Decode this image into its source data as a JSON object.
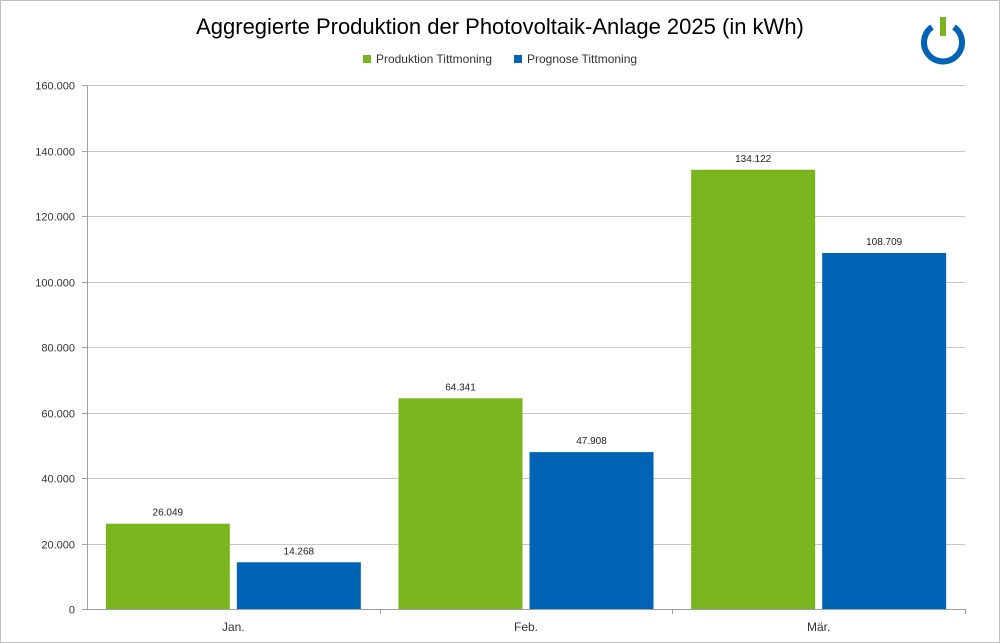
{
  "chart_data": {
    "type": "bar",
    "title": "Aggregierte Produktion der Photovoltaik-Anlage 2025 (in kWh)",
    "categories": [
      "Jan.",
      "Feb.",
      "Mär."
    ],
    "series": [
      {
        "name": "Produktion Tittmoning",
        "color": "#7ab51d",
        "values": [
          26049,
          64341,
          134122
        ],
        "labels": [
          "26.049",
          "64.341",
          "134.122"
        ]
      },
      {
        "name": "Prognose Tittmoning",
        "color": "#0064b4",
        "values": [
          14268,
          47908,
          108709
        ],
        "labels": [
          "14.268",
          "47.908",
          "108.709"
        ]
      }
    ],
    "ylim": [
      0,
      160000
    ],
    "yticks": [
      0,
      20000,
      40000,
      60000,
      80000,
      100000,
      120000,
      140000,
      160000
    ],
    "ytick_labels": [
      "0",
      "20.000",
      "40.000",
      "60.000",
      "80.000",
      "100.000",
      "120.000",
      "140.000",
      "160.000"
    ],
    "grid": true,
    "legend_position": "top-center"
  },
  "logo": {
    "icon": "power-button-icon",
    "ring_color": "#0064b4",
    "bar_color": "#7ab51d"
  }
}
